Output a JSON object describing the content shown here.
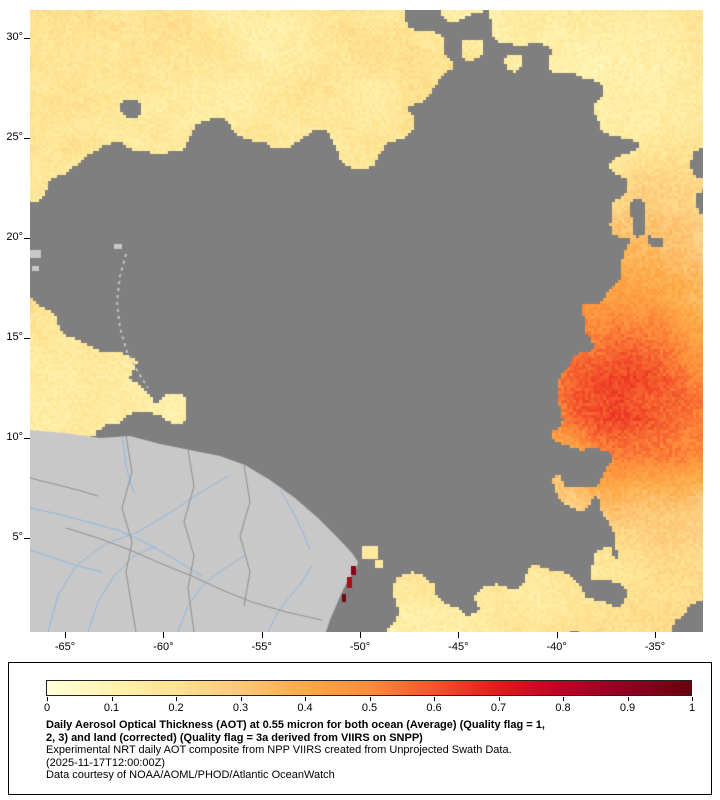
{
  "map": {
    "lat_tick_labels": [
      "30°",
      "25°",
      "20°",
      "15°",
      "10°",
      "5°"
    ],
    "lat_tick_degrees": [
      30,
      25,
      20,
      15,
      10,
      5
    ],
    "lon_tick_labels": [
      "-65°",
      "-60°",
      "-55°",
      "-50°",
      "-45°",
      "-40°",
      "-35°"
    ],
    "lon_tick_degrees": [
      -65,
      -60,
      -55,
      -50,
      -45,
      -40,
      -35
    ],
    "colors": {
      "no_data_gray": "#7f7f7f",
      "land_gray": "#c8c8c8",
      "country_border": "#8f8f8f",
      "river_blue": "#8fb8e0",
      "island_dash": "#bcc6ce",
      "coast_high_aot_red": "#a50f15",
      "coast_patch_yellow": "#ffe9a0"
    }
  },
  "legend": {
    "tick_labels": [
      "0",
      "0.1",
      "0.2",
      "0.3",
      "0.4",
      "0.5",
      "0.6",
      "0.7",
      "0.8",
      "0.9",
      "1"
    ],
    "tick_values": [
      0,
      0.1,
      0.2,
      0.3,
      0.4,
      0.5,
      0.6,
      0.7,
      0.8,
      0.9,
      1
    ],
    "colormap_stops": [
      {
        "t": 0.0,
        "color": "#ffffd9"
      },
      {
        "t": 0.1,
        "color": "#fff3b0"
      },
      {
        "t": 0.2,
        "color": "#fee391"
      },
      {
        "t": 0.3,
        "color": "#fdc879"
      },
      {
        "t": 0.4,
        "color": "#fdaa48"
      },
      {
        "t": 0.5,
        "color": "#fd8d3c"
      },
      {
        "t": 0.6,
        "color": "#f4542c"
      },
      {
        "t": 0.7,
        "color": "#e31a1c"
      },
      {
        "t": 0.8,
        "color": "#bd0026"
      },
      {
        "t": 0.9,
        "color": "#8f0021"
      },
      {
        "t": 1.0,
        "color": "#67000d"
      }
    ],
    "caption_bold_line1": "Daily Aerosol Optical Thickness (AOT) at 0.55 micron for both ocean (Average) (Quality flag = 1,",
    "caption_bold_line2": "2, 3) and land (corrected) (Quality flag = 3a derived from VIIRS on SNPP)",
    "caption_line3": "Experimental NRT daily AOT composite from NPP VIIRS created from Unprojected Swath Data.",
    "caption_line4": "(2025-11-17T12:00:00Z)",
    "caption_line5": "Data courtesy of NOAA/AOML/PHOD/Atlantic OceanWatch"
  }
}
